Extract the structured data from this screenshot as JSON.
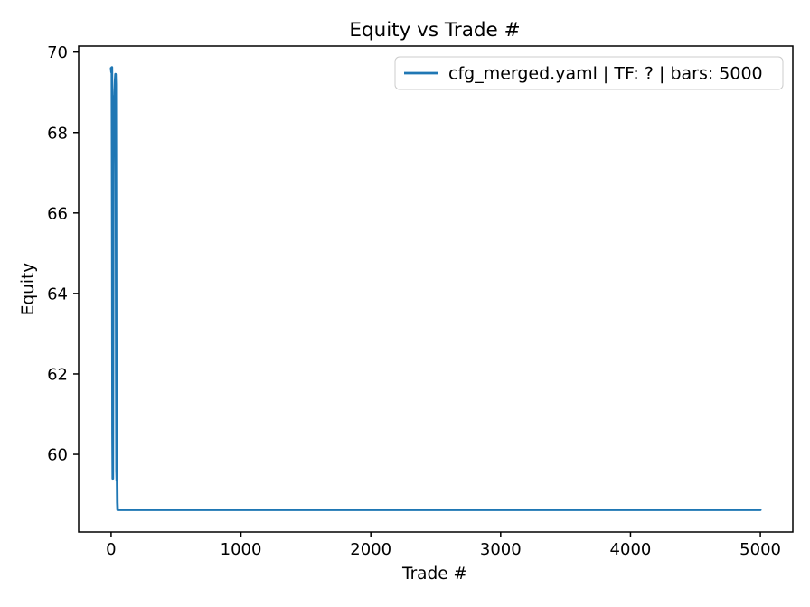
{
  "chart_data": {
    "type": "line",
    "title": "Equity vs Trade #",
    "xlabel": "Trade #",
    "ylabel": "Equity",
    "xlim": [
      -250,
      5250
    ],
    "ylim": [
      58.07,
      70.15
    ],
    "xticks": [
      0,
      1000,
      2000,
      3000,
      4000,
      5000
    ],
    "yticks": [
      60,
      62,
      64,
      66,
      68,
      70
    ],
    "grid": false,
    "background_color": "#ffffff",
    "axes_color": "#000000",
    "legend": {
      "position": "upper-right",
      "border_color": "#cccccc",
      "entries": [
        {
          "label": "cfg_merged.yaml | TF: ? | bars: 5000",
          "color": "#1f77b4"
        }
      ]
    },
    "series": [
      {
        "name": "cfg_merged.yaml | TF: ? | bars: 5000",
        "color": "#1f77b4",
        "line_width": 2.8,
        "points": [
          [
            0,
            69.6
          ],
          [
            3,
            69.5
          ],
          [
            6,
            69.62
          ],
          [
            9,
            65.0
          ],
          [
            11,
            60.5
          ],
          [
            13,
            59.4
          ],
          [
            15,
            63.0
          ],
          [
            17,
            67.0
          ],
          [
            19,
            68.4
          ],
          [
            21,
            68.9
          ],
          [
            24,
            68.5
          ],
          [
            27,
            69.0
          ],
          [
            31,
            69.3
          ],
          [
            34,
            69.45
          ],
          [
            36,
            69.2
          ],
          [
            38,
            66.0
          ],
          [
            40,
            62.0
          ],
          [
            42,
            59.6
          ],
          [
            44,
            59.35
          ],
          [
            46,
            59.42
          ],
          [
            48,
            58.8
          ],
          [
            50,
            58.62
          ],
          [
            5000,
            58.62
          ]
        ],
        "final_value": 58.62,
        "peak_value": 69.62
      }
    ]
  }
}
